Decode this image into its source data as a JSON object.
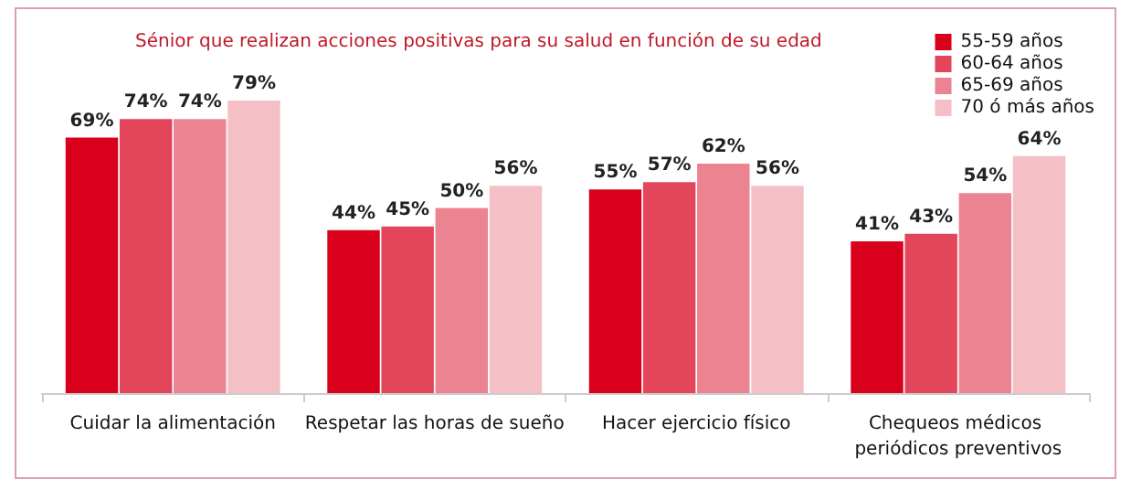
{
  "chart_data": {
    "type": "bar",
    "title": "Sénior que realizan acciones positivas para su salud en función de su edad",
    "categories": [
      "Cuidar la alimentación",
      "Respetar las horas de sueño",
      "Hacer ejercicio físico",
      "Chequeos médicos periódicos preventivos"
    ],
    "series": [
      {
        "name": "55-59 años",
        "color": "#d9001b",
        "values": [
          69,
          44,
          55,
          41
        ],
        "value_labels": [
          "69%",
          "44%",
          "55%",
          "41%"
        ]
      },
      {
        "name": "60-64 años",
        "color": "#e3455a",
        "values": [
          74,
          45,
          57,
          43
        ],
        "value_labels": [
          "74%",
          "45%",
          "57%",
          "43%"
        ]
      },
      {
        "name": "65-69 años",
        "color": "#ec8390",
        "values": [
          74,
          50,
          62,
          54
        ],
        "value_labels": [
          "74%",
          "50%",
          "62%",
          "54%"
        ]
      },
      {
        "name": "70 ó más años",
        "color": "#f5bfc6",
        "values": [
          79,
          56,
          56,
          64
        ],
        "value_labels": [
          "79%",
          "56%",
          "56%",
          "64%"
        ]
      }
    ],
    "legend": "top right"
  }
}
